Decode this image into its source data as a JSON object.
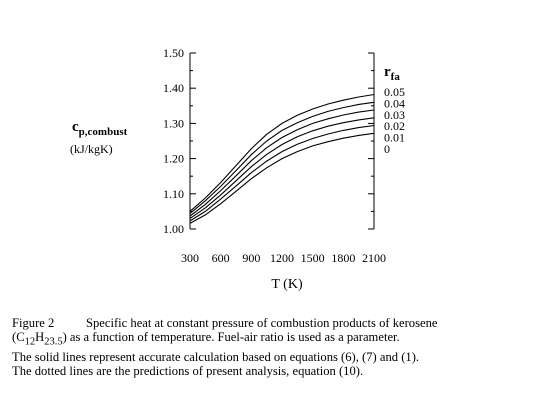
{
  "chart_data": {
    "type": "line",
    "xlabel": "T  (K)",
    "ylabel": "c",
    "ylabel_sub": "p,combust",
    "ylabel_units": "(kJ/kgK)",
    "legend_title": "r",
    "legend_title_sub": "fa",
    "legend_placement": "right",
    "grid": false,
    "xlim": [
      300,
      2100
    ],
    "ylim": [
      1.0,
      1.5
    ],
    "xticks": [
      300,
      600,
      900,
      1200,
      1500,
      1800,
      2100
    ],
    "xtick_labels": [
      "300",
      "600",
      "900",
      "1200",
      "1500",
      "1800",
      "2100"
    ],
    "yticks": [
      1.0,
      1.1,
      1.2,
      1.3,
      1.4,
      1.5
    ],
    "ytick_labels": [
      "1.00",
      "1.10",
      "1.20",
      "1.30",
      "1.40",
      "1.50"
    ],
    "x": [
      300,
      450,
      600,
      750,
      900,
      1050,
      1200,
      1350,
      1500,
      1650,
      1800,
      1950,
      2100
    ],
    "series": [
      {
        "name": "0.05",
        "values": [
          1.05,
          1.088,
          1.132,
          1.18,
          1.228,
          1.269,
          1.3,
          1.323,
          1.341,
          1.355,
          1.366,
          1.375,
          1.382
        ]
      },
      {
        "name": "0.04",
        "values": [
          1.044,
          1.08,
          1.121,
          1.166,
          1.211,
          1.25,
          1.28,
          1.302,
          1.32,
          1.334,
          1.345,
          1.354,
          1.36
        ]
      },
      {
        "name": "0.03",
        "values": [
          1.037,
          1.07,
          1.109,
          1.151,
          1.194,
          1.231,
          1.26,
          1.282,
          1.3,
          1.313,
          1.324,
          1.332,
          1.338
        ]
      },
      {
        "name": "0.02",
        "values": [
          1.03,
          1.06,
          1.097,
          1.137,
          1.177,
          1.212,
          1.24,
          1.262,
          1.279,
          1.292,
          1.302,
          1.31,
          1.316
        ]
      },
      {
        "name": "0.01",
        "values": [
          1.023,
          1.05,
          1.085,
          1.122,
          1.16,
          1.193,
          1.22,
          1.241,
          1.257,
          1.27,
          1.28,
          1.288,
          1.294
        ]
      },
      {
        "name": "0",
        "values": [
          1.016,
          1.04,
          1.072,
          1.107,
          1.143,
          1.174,
          1.2,
          1.22,
          1.236,
          1.248,
          1.258,
          1.266,
          1.272
        ]
      }
    ]
  },
  "caption": {
    "figure_number": "Figure 2",
    "line1": "Specific heat at constant pressure of combustion products of kerosene",
    "line2_pre": "(C",
    "line2_sub1": "12",
    "line2_mid": "H",
    "line2_sub2": "23.5",
    "line2_post": ") as a function of temperature.  Fuel-air ratio is used as a parameter.",
    "line3": "The solid lines represent accurate calculation based on equations (6), (7) and (1).",
    "line4": "The dotted lines are the predictions of present analysis, equation (10)."
  }
}
